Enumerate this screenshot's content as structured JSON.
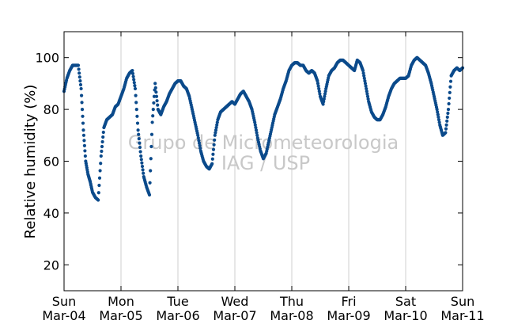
{
  "chart_data": {
    "type": "scatter",
    "ylabel": "Relative humidity (%)",
    "xlabel": "",
    "ylim": [
      10,
      110
    ],
    "y_ticks": [
      20,
      40,
      60,
      80,
      100
    ],
    "x_range_days": [
      0,
      7
    ],
    "x_ticks": [
      {
        "day": 0,
        "weekday": "Sun",
        "date": "Mar-04"
      },
      {
        "day": 1,
        "weekday": "Mon",
        "date": "Mar-05"
      },
      {
        "day": 2,
        "weekday": "Tue",
        "date": "Mar-06"
      },
      {
        "day": 3,
        "weekday": "Wed",
        "date": "Mar-07"
      },
      {
        "day": 4,
        "weekday": "Thu",
        "date": "Mar-08"
      },
      {
        "day": 5,
        "weekday": "Fri",
        "date": "Mar-09"
      },
      {
        "day": 6,
        "weekday": "Sat",
        "date": "Mar-10"
      },
      {
        "day": 7,
        "weekday": "Sun",
        "date": "Mar-11"
      }
    ],
    "grid": "vertical",
    "series_color": "#0b4a8b",
    "series": [
      {
        "x": [
          0.0,
          0.05,
          0.1,
          0.15,
          0.2,
          0.25,
          0.3,
          0.34,
          0.38,
          0.42,
          0.46,
          0.5,
          0.55,
          0.6,
          0.65,
          0.7,
          0.75,
          0.8,
          0.85,
          0.9,
          0.95,
          1.0,
          1.05,
          1.1,
          1.15,
          1.2,
          1.25,
          1.3,
          1.35,
          1.4,
          1.45,
          1.5,
          1.55,
          1.6,
          1.65,
          1.7,
          1.75,
          1.8,
          1.85,
          1.9,
          1.95,
          2.0,
          2.05,
          2.1,
          2.15,
          2.2,
          2.25,
          2.3,
          2.35,
          2.4,
          2.45,
          2.5,
          2.55,
          2.6,
          2.65,
          2.7,
          2.75,
          2.8,
          2.85,
          2.9,
          2.95,
          3.0,
          3.05,
          3.1,
          3.15,
          3.2,
          3.25,
          3.3,
          3.35,
          3.4,
          3.45,
          3.5,
          3.55,
          3.6,
          3.65,
          3.7,
          3.75,
          3.8,
          3.85,
          3.9,
          3.95,
          4.0,
          4.05,
          4.1,
          4.15,
          4.2,
          4.25,
          4.3,
          4.35,
          4.4,
          4.45,
          4.5,
          4.55,
          4.6,
          4.65,
          4.7,
          4.75,
          4.8,
          4.85,
          4.9,
          4.95,
          5.0,
          5.05,
          5.1,
          5.15,
          5.2,
          5.25,
          5.3,
          5.35,
          5.4,
          5.45,
          5.5,
          5.55,
          5.6,
          5.65,
          5.7,
          5.75,
          5.8,
          5.85,
          5.9,
          5.95,
          6.0,
          6.05,
          6.1,
          6.15,
          6.2,
          6.25,
          6.3,
          6.35,
          6.4,
          6.45,
          6.5,
          6.55,
          6.6,
          6.65,
          6.7,
          6.75,
          6.8,
          6.85,
          6.9,
          6.95,
          7.0
        ],
        "y": [
          87,
          92,
          95,
          97,
          97,
          97,
          88,
          72,
          60,
          55,
          52,
          48,
          46,
          45,
          62,
          73,
          76,
          77,
          78,
          81,
          82,
          85,
          88,
          92,
          94,
          95,
          88,
          72,
          62,
          54,
          50,
          47,
          75,
          90,
          80,
          78,
          81,
          83,
          86,
          88,
          90,
          91,
          91,
          89,
          88,
          85,
          80,
          75,
          70,
          64,
          60,
          58,
          57,
          59,
          70,
          76,
          79,
          80,
          81,
          82,
          83,
          82,
          84,
          86,
          87,
          85,
          83,
          80,
          75,
          69,
          64,
          61,
          63,
          68,
          73,
          78,
          81,
          84,
          88,
          91,
          95,
          97,
          98,
          98,
          97,
          97,
          95,
          94,
          95,
          94,
          91,
          85,
          82,
          88,
          93,
          95,
          96,
          98,
          99,
          99,
          98,
          97,
          96,
          95,
          99,
          98,
          95,
          89,
          83,
          79,
          77,
          76,
          76,
          78,
          81,
          85,
          88,
          90,
          91,
          92,
          92,
          92,
          93,
          97,
          99,
          100,
          99,
          98,
          97,
          94,
          90,
          85,
          80,
          74,
          70,
          71,
          80,
          93,
          95,
          96,
          95,
          96
        ]
      }
    ],
    "watermark_lines": [
      "Grupo de Micrometeorologia",
      "IAG / USP"
    ]
  }
}
